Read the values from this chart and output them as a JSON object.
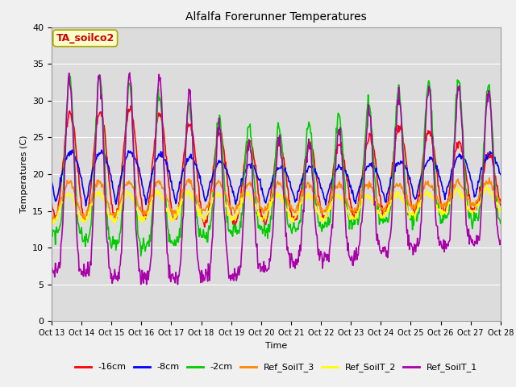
{
  "title": "Alfalfa Forerunner Temperatures",
  "xlabel": "Time",
  "ylabel": "Temperatures (C)",
  "ylim": [
    0,
    40
  ],
  "background_color": "#dcdcdc",
  "plot_bg_color": "#dcdcdc",
  "annotation_text": "TA_soilco2",
  "annotation_color": "#cc0000",
  "annotation_bg": "#ffffcc",
  "annotation_border": "#aaaa00",
  "tick_labels": [
    "Oct 13",
    "Oct 14",
    "Oct 15",
    "Oct 16",
    "Oct 17",
    "Oct 18",
    "Oct 19",
    "Oct 20",
    "Oct 21",
    "Oct 22",
    "Oct 23",
    "Oct 24",
    "Oct 25",
    "Oct 26",
    "Oct 27",
    "Oct 28"
  ],
  "series_names": [
    "-16cm",
    "-8cm",
    "-2cm",
    "Ref_SoilT_3",
    "Ref_SoilT_2",
    "Ref_SoilT_1"
  ],
  "series_colors": [
    "#ff0000",
    "#0000ff",
    "#00cc00",
    "#ff8800",
    "#ffff00",
    "#aa00aa"
  ],
  "linewidth": 1.2
}
